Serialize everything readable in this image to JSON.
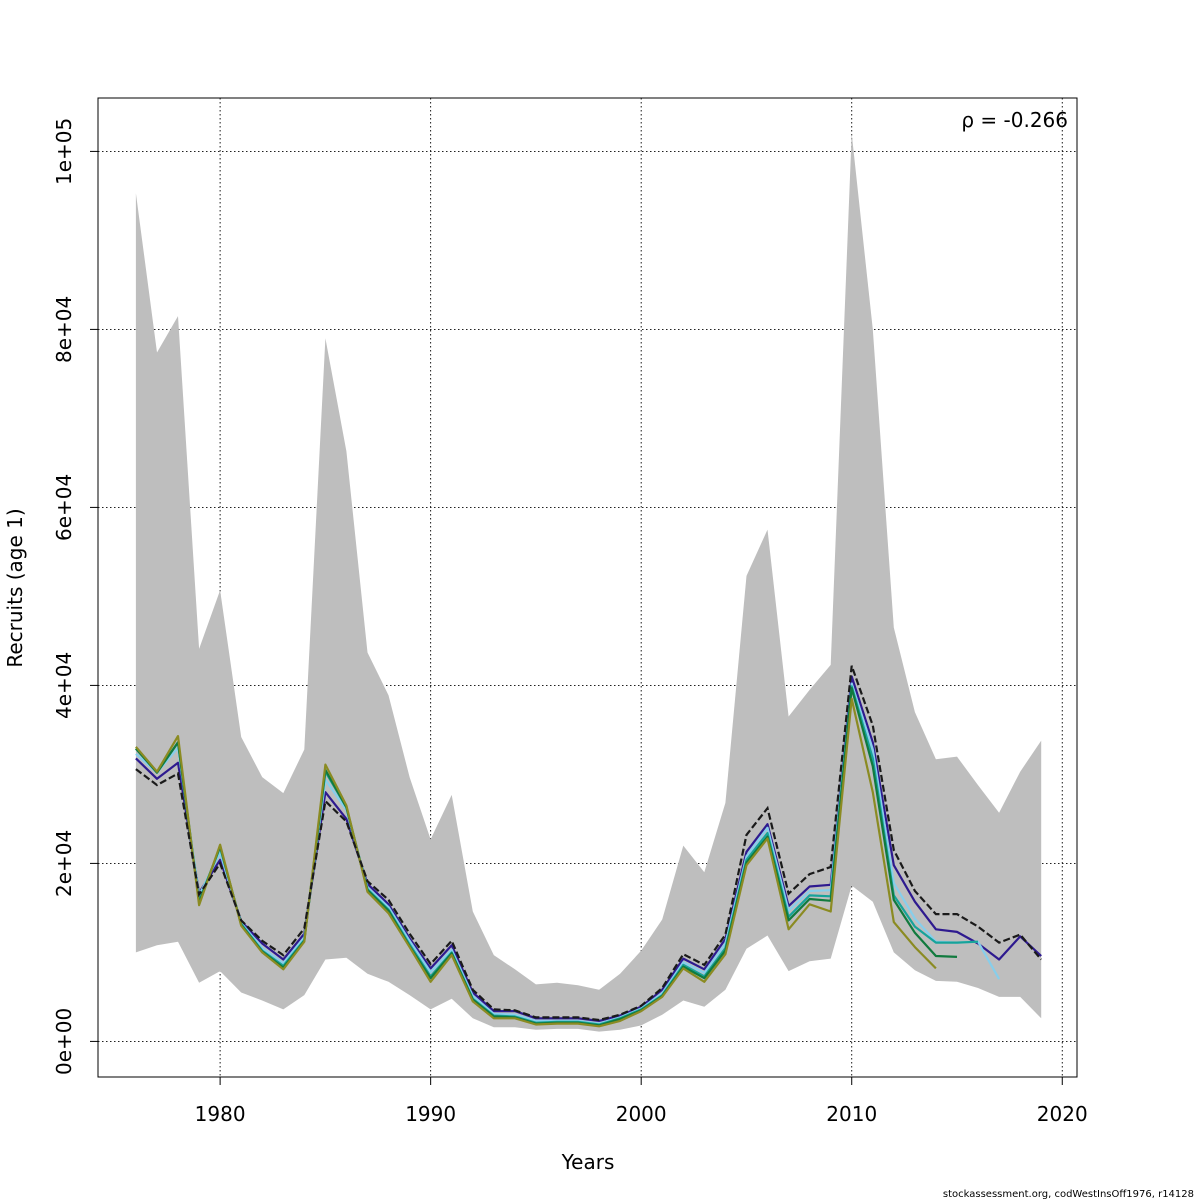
{
  "chart_data": {
    "type": "line",
    "xlabel": "Years",
    "ylabel": "Recruits (age 1)",
    "annotation": "ρ = -0.266",
    "footer": "stockassessment.org, codWestInsOff1976, r14128",
    "xlim": [
      1974.2,
      2020.7
    ],
    "ylim": [
      -4000,
      106000
    ],
    "x_ticks": [
      1980,
      1990,
      2000,
      2010,
      2020
    ],
    "x_tick_labels": [
      "1980",
      "1990",
      "2000",
      "2010",
      "2020"
    ],
    "y_ticks": [
      0,
      20000,
      40000,
      60000,
      80000,
      100000
    ],
    "y_tick_labels": [
      "0e+00",
      "2e+04",
      "4e+04",
      "6e+04",
      "8e+04",
      "1e+05"
    ],
    "grid": true,
    "colors": {
      "band": "#bebebe",
      "base": "#000000",
      "peels": [
        "#2e1a8f",
        "#87ceeb",
        "#16a39a",
        "#117a3e",
        "#8b8b22"
      ]
    },
    "band": {
      "x": [
        1976,
        1977,
        1978,
        1979,
        1980,
        1981,
        1982,
        1983,
        1984,
        1985,
        1986,
        1987,
        1988,
        1989,
        1990,
        1991,
        1992,
        1993,
        1994,
        1995,
        1996,
        1997,
        1998,
        1999,
        2000,
        2001,
        2002,
        2003,
        2004,
        2005,
        2006,
        2007,
        2008,
        2009,
        2010,
        2011,
        2012,
        2013,
        2014,
        2015,
        2016,
        2017,
        2018,
        2019
      ],
      "upper": [
        95300,
        77400,
        81500,
        44100,
        50700,
        34200,
        29700,
        27900,
        32800,
        79000,
        66300,
        43700,
        38900,
        29700,
        22700,
        27700,
        14600,
        9700,
        8100,
        6400,
        6600,
        6300,
        5800,
        7600,
        10200,
        13700,
        22000,
        19000,
        26800,
        52300,
        57500,
        36500,
        39500,
        42300,
        102000,
        80000,
        46500,
        37000,
        31700,
        32000,
        28800,
        25700,
        30300,
        33800
      ],
      "lower": [
        10000,
        10800,
        11200,
        6600,
        7900,
        5500,
        4600,
        3600,
        5200,
        9200,
        9400,
        7600,
        6700,
        5200,
        3600,
        4800,
        2600,
        1600,
        1600,
        1300,
        1400,
        1400,
        1100,
        1300,
        1800,
        3000,
        4600,
        3900,
        5800,
        10400,
        11900,
        7900,
        9000,
        9300,
        17500,
        15700,
        10000,
        8000,
        6800,
        6700,
        6000,
        5000,
        5000,
        2600
      ]
    },
    "series": [
      {
        "x": [
          1976,
          1977,
          1978,
          1979,
          1980,
          1981,
          1982,
          1983,
          1984,
          1985,
          1986,
          1987,
          1988,
          1989,
          1990,
          1991,
          1992,
          1993,
          1994,
          1995,
          1996,
          1997,
          1998,
          1999,
          2000,
          2001,
          2002,
          2003,
          2004,
          2005,
          2006,
          2007,
          2008,
          2009,
          2010,
          2011,
          2012,
          2013,
          2014,
          2015,
          2016,
          2017,
          2018,
          2019
        ],
        "values": [
          31800,
          29500,
          31300,
          16700,
          20400,
          13500,
          11000,
          9200,
          12100,
          28000,
          25000,
          17700,
          15400,
          11600,
          8200,
          10800,
          5500,
          3400,
          3400,
          2600,
          2600,
          2600,
          2300,
          2900,
          3900,
          5800,
          9300,
          8100,
          11500,
          21300,
          24400,
          15200,
          17400,
          17600,
          41000,
          33600,
          19800,
          15700,
          12600,
          12300,
          11000,
          9200,
          11800,
          9600
        ]
      },
      {
        "x": [
          1976,
          1977,
          1978,
          1979,
          1980,
          1981,
          1982,
          1983,
          1984,
          1985,
          1986,
          1987,
          1988,
          1989,
          1990,
          1991,
          1992,
          1993,
          1994,
          1995,
          1996,
          1997,
          1998,
          1999,
          2000,
          2001,
          2002,
          2003,
          2004,
          2005,
          2006,
          2007,
          2008,
          2009,
          2010,
          2011,
          2012,
          2013,
          2014,
          2015,
          2016,
          2017
        ],
        "values": [
          32300,
          30200,
          33000,
          16400,
          21200,
          13300,
          10500,
          8800,
          11700,
          29400,
          26000,
          17300,
          15100,
          11300,
          7800,
          10300,
          5100,
          3100,
          3000,
          2300,
          2300,
          2300,
          2000,
          2700,
          3700,
          5400,
          8900,
          7700,
          11000,
          20800,
          24000,
          14700,
          16900,
          17000,
          40200,
          32800,
          17800,
          13800,
          11200,
          11100,
          11200,
          7000
        ]
      },
      {
        "x": [
          1976,
          1977,
          1978,
          1979,
          1980,
          1981,
          1982,
          1983,
          1984,
          1985,
          1986,
          1987,
          1988,
          1989,
          1990,
          1991,
          1992,
          1993,
          1994,
          1995,
          1996,
          1997,
          1998,
          1999,
          2000,
          2001,
          2002,
          2003,
          2004,
          2005,
          2006,
          2007,
          2008,
          2009,
          2010,
          2011,
          2012,
          2013,
          2014,
          2015,
          2016
        ],
        "values": [
          32900,
          30200,
          33600,
          15800,
          21800,
          13200,
          10200,
          8500,
          11400,
          30300,
          26300,
          17100,
          14800,
          10900,
          7300,
          10000,
          4800,
          2900,
          2800,
          2100,
          2200,
          2200,
          1900,
          2600,
          3600,
          5200,
          8600,
          7300,
          10500,
          20400,
          23400,
          14000,
          16400,
          16300,
          39900,
          31800,
          16400,
          12900,
          11100,
          11100,
          11200
        ]
      },
      {
        "x": [
          1976,
          1977,
          1978,
          1979,
          1980,
          1981,
          1982,
          1983,
          1984,
          1985,
          1986,
          1987,
          1988,
          1989,
          1990,
          1991,
          1992,
          1993,
          1994,
          1995,
          1996,
          1997,
          1998,
          1999,
          2000,
          2001,
          2002,
          2003,
          2004,
          2005,
          2006,
          2007,
          2008,
          2009,
          2010,
          2011,
          2012,
          2013,
          2014,
          2015
        ],
        "values": [
          32900,
          30200,
          33600,
          15600,
          21900,
          13100,
          10100,
          8300,
          11300,
          30500,
          26300,
          17000,
          14700,
          10700,
          7100,
          9900,
          4700,
          2800,
          2700,
          2000,
          2100,
          2100,
          1800,
          2500,
          3500,
          5100,
          8400,
          7100,
          10200,
          20100,
          23000,
          13600,
          16000,
          15800,
          39700,
          30900,
          15900,
          12200,
          9600,
          9500
        ]
      },
      {
        "x": [
          1976,
          1977,
          1978,
          1979,
          1980,
          1981,
          1982,
          1983,
          1984,
          1985,
          1986,
          1987,
          1988,
          1989,
          1990,
          1991,
          1992,
          1993,
          1994,
          1995,
          1996,
          1997,
          1998,
          1999,
          2000,
          2001,
          2002,
          2003,
          2004,
          2005,
          2006,
          2007,
          2008,
          2009,
          2010,
          2011,
          2012,
          2013,
          2014
        ],
        "values": [
          33100,
          30300,
          34300,
          15300,
          22100,
          13000,
          10000,
          8100,
          11200,
          31100,
          26500,
          16800,
          14400,
          10600,
          6700,
          9700,
          4500,
          2600,
          2600,
          1900,
          2000,
          2000,
          1700,
          2300,
          3400,
          5000,
          8200,
          6700,
          9800,
          19800,
          22800,
          12600,
          15400,
          14600,
          38500,
          28000,
          13400,
          10600,
          8200
        ]
      },
      {
        "x": [
          1976,
          1977,
          1978,
          1979,
          1980,
          1981,
          1982,
          1983,
          1984,
          1985,
          1986,
          1987,
          1988,
          1989,
          1990,
          1991,
          1992,
          1993,
          1994,
          1995,
          1996,
          1997,
          1998,
          1999,
          2000,
          2001,
          2002,
          2003,
          2004,
          2005,
          2006,
          2007,
          2008,
          2009,
          2010,
          2011,
          2012,
          2013,
          2014,
          2015,
          2016,
          2017,
          2018,
          2019
        ],
        "values": [
          30600,
          28800,
          30100,
          16500,
          20000,
          13600,
          11300,
          9700,
          12700,
          27000,
          24700,
          18000,
          15900,
          12100,
          8700,
          11300,
          5800,
          3600,
          3500,
          2700,
          2700,
          2700,
          2400,
          3000,
          4000,
          6000,
          9800,
          8600,
          12000,
          23200,
          26200,
          16600,
          18800,
          19600,
          42200,
          35500,
          21500,
          16900,
          14300,
          14300,
          12900,
          11100,
          12000,
          9200
        ]
      }
    ]
  }
}
